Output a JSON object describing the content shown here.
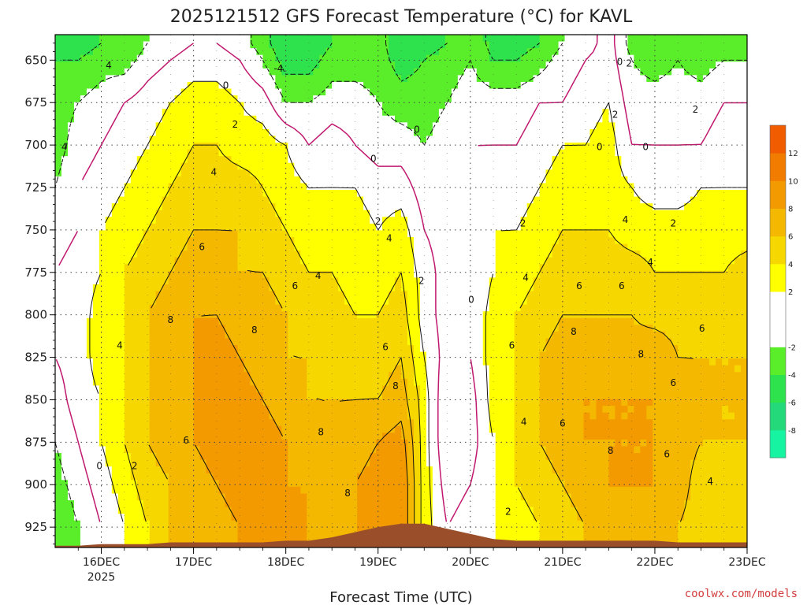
{
  "title": "2025121512 GFS Forecast Temperature (°C) for KAVL",
  "xlabel": "Forecast Time (UTC)",
  "credit": "coolwx.com/models",
  "colors": {
    "ground": "#9a4f2a",
    "levels": [
      {
        "lo": -10,
        "hi": -8,
        "color": "#16f4a2"
      },
      {
        "lo": -8,
        "hi": -6,
        "color": "#23d97a"
      },
      {
        "lo": -6,
        "hi": -4,
        "color": "#2ee24e"
      },
      {
        "lo": -4,
        "hi": -2,
        "color": "#5aee2a"
      },
      {
        "lo": -2,
        "hi": 2,
        "color": "#ffffff"
      },
      {
        "lo": 2,
        "hi": 4,
        "color": "#ffff00"
      },
      {
        "lo": 4,
        "hi": 6,
        "color": "#f7d700"
      },
      {
        "lo": 6,
        "hi": 8,
        "color": "#f5b800"
      },
      {
        "lo": 8,
        "hi": 10,
        "color": "#f29a00"
      },
      {
        "lo": 10,
        "hi": 12,
        "color": "#f27c00"
      },
      {
        "lo": 12,
        "hi": 14,
        "color": "#f25c00"
      }
    ]
  },
  "chart_data": {
    "type": "heatmap",
    "title": "2025121512 GFS Forecast Temperature (°C) for KAVL",
    "xlabel": "Forecast Time (UTC)",
    "ylabel": "",
    "x_ticks": [
      "16DEC",
      "17DEC",
      "18DEC",
      "19DEC",
      "20DEC",
      "21DEC",
      "22DEC",
      "23DEC"
    ],
    "x_year_label": "2025",
    "y_ticks": [
      650,
      675,
      700,
      725,
      750,
      775,
      800,
      825,
      850,
      875,
      900,
      925
    ],
    "y_range_hPa": [
      635,
      937
    ],
    "x_range_days": [
      15.5,
      23.0
    ],
    "colorbar_ticks": [
      -8,
      -6,
      -4,
      -2,
      2,
      4,
      6,
      8,
      10,
      12
    ],
    "contour_levels": [
      -4,
      -2,
      0,
      2,
      4,
      6,
      8
    ],
    "grid": true,
    "times": [
      15.5,
      15.75,
      16.0,
      16.25,
      16.5,
      16.75,
      17.0,
      17.25,
      17.5,
      17.75,
      18.0,
      18.25,
      18.5,
      18.75,
      19.0,
      19.25,
      19.5,
      19.75,
      20.0,
      20.25,
      20.5,
      20.75,
      21.0,
      21.25,
      21.5,
      21.75,
      22.0,
      22.25,
      22.5,
      22.75,
      23.0
    ],
    "pressure_levels": [
      640,
      650,
      675,
      700,
      725,
      750,
      775,
      800,
      825,
      850,
      875,
      900,
      925
    ],
    "temperature_C": [
      [
        -4,
        -5,
        -4,
        -4,
        -2,
        -1,
        0,
        0,
        -1,
        -3,
        -6,
        -6,
        -4,
        -4,
        -3,
        -6,
        -5,
        -4,
        -2,
        -5,
        -5,
        -4,
        -2,
        -1,
        1,
        -3,
        -4,
        -3,
        -4,
        -3,
        -3
      ],
      [
        -4,
        -4,
        -3,
        -3,
        -1,
        0,
        1,
        1,
        0,
        -2,
        -5,
        -5,
        -3,
        -3,
        -3,
        -5,
        -4,
        -3,
        -2,
        -4,
        -4,
        -3,
        -1,
        0,
        1,
        -2,
        -3,
        -2,
        -3,
        -2,
        -2
      ],
      [
        -3,
        -2,
        -1,
        0,
        1,
        2,
        3,
        3,
        2,
        1,
        -2,
        -2,
        -1,
        -1,
        -2,
        -3,
        -3,
        -2,
        -1,
        -1,
        -1,
        0,
        0,
        1,
        2,
        -1,
        -1,
        -1,
        -1,
        0,
        0
      ],
      [
        -3,
        -1,
        0,
        1,
        2,
        3,
        4,
        4,
        3,
        3,
        2,
        0,
        1,
        0,
        -1,
        -1,
        -2,
        -1,
        0,
        0,
        0,
        1,
        2,
        2,
        3,
        0,
        0,
        0,
        0,
        1,
        1
      ],
      [
        -2,
        0,
        1,
        2,
        3,
        4,
        5,
        5,
        5,
        4,
        3,
        2,
        2,
        2,
        1,
        1,
        -1,
        -1,
        0,
        1,
        1,
        2,
        3,
        3,
        3,
        2,
        1,
        1,
        2,
        2,
        2
      ],
      [
        -1,
        0,
        2,
        3,
        4,
        5,
        6,
        6,
        6,
        5,
        4,
        3,
        3,
        3,
        2,
        3,
        0,
        -1,
        0,
        2,
        2,
        3,
        4,
        4,
        4,
        3,
        3,
        3,
        3,
        3,
        3
      ],
      [
        0,
        1,
        2,
        4,
        5,
        6,
        7,
        7,
        6,
        6,
        5,
        4,
        4,
        3,
        3,
        4,
        1,
        -1,
        0,
        2,
        3,
        4,
        5,
        5,
        5,
        5,
        4,
        4,
        4,
        4,
        5
      ],
      [
        0,
        1,
        3,
        4,
        6,
        7,
        8,
        8,
        7,
        7,
        6,
        5,
        5,
        4,
        4,
        5,
        1,
        -1,
        0,
        3,
        4,
        5,
        6,
        6,
        6,
        6,
        5,
        5,
        5,
        5,
        6
      ],
      [
        0,
        1,
        3,
        4,
        6,
        7,
        8,
        9,
        8,
        7,
        6,
        6,
        5,
        5,
        5,
        6,
        2,
        -1,
        0,
        3,
        4,
        6,
        7,
        7,
        7,
        7,
        8,
        6,
        6,
        6,
        6
      ],
      [
        -1,
        1,
        2,
        4,
        6,
        7,
        8,
        9,
        9,
        8,
        7,
        6,
        6,
        6,
        6,
        7,
        3,
        -2,
        -1,
        3,
        4,
        6,
        7,
        8,
        8,
        8,
        8,
        7,
        6,
        6,
        6
      ],
      [
        -2,
        0,
        2,
        4,
        6,
        7,
        8,
        9,
        9,
        9,
        8,
        7,
        6,
        7,
        8,
        9,
        3,
        -2,
        -1,
        2,
        4,
        6,
        7,
        8,
        8,
        8,
        8,
        7,
        6,
        6,
        6
      ],
      [
        -3,
        -1,
        1,
        3,
        5,
        6,
        7,
        8,
        9,
        9,
        8,
        8,
        7,
        8,
        9,
        10,
        3,
        -1,
        0,
        2,
        4,
        5,
        6,
        7,
        8,
        8,
        8,
        7,
        5,
        5,
        5
      ],
      [
        -4,
        -2,
        0,
        2,
        4,
        6,
        7,
        7,
        8,
        8,
        8,
        8,
        7,
        8,
        9,
        10,
        3,
        0,
        1,
        2,
        3,
        4,
        5,
        6,
        7,
        7,
        7,
        6,
        5,
        5,
        5
      ]
    ],
    "surface_pressure_hPa": [
      936,
      936,
      935,
      935,
      935,
      934,
      934,
      934,
      934,
      934,
      933,
      933,
      931,
      928,
      925,
      923,
      923,
      926,
      929,
      932,
      933,
      933,
      933,
      933,
      933,
      933,
      933,
      934,
      934,
      934,
      934
    ]
  }
}
